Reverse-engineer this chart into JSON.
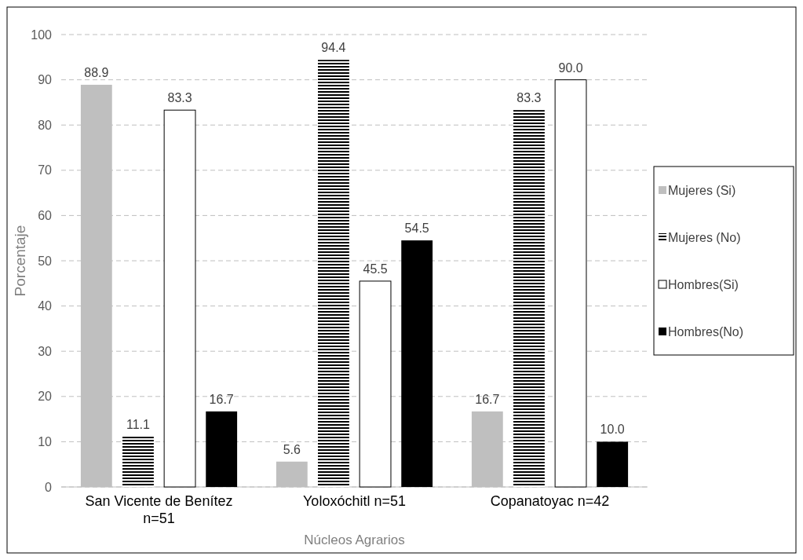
{
  "chart_data": {
    "type": "bar",
    "xlabel": "Núcleos Agrarios",
    "ylabel": "Porcentaje",
    "categories": [
      "San Vicente de Benítez n=51",
      "Yoloxóchitl n=51",
      "Copanatoyac n=42"
    ],
    "series": [
      {
        "name": "Mujeres (Si)",
        "color": "#bfbfbf",
        "values": [
          88.9,
          5.6,
          16.7
        ],
        "value_labels": [
          "88.9",
          "5.6",
          "16.7"
        ]
      },
      {
        "name": "Mujeres (No)",
        "color": "#000000",
        "values": [
          11.1,
          94.4,
          83.3
        ],
        "value_labels": [
          "11.1",
          "94.4",
          "83.3"
        ]
      },
      {
        "name": "Hombres(Si)",
        "color": "#ffffff",
        "values": [
          83.3,
          45.5,
          90.0
        ],
        "value_labels": [
          "83.3",
          "45.5",
          "90.0"
        ]
      },
      {
        "name": "Hombres(No)",
        "color": "#000000",
        "values": [
          16.7,
          54.5,
          10.0
        ],
        "value_labels": [
          "16.7",
          "54.5",
          "10.0"
        ]
      }
    ],
    "ylim": [
      0,
      100
    ],
    "yticks": [
      0,
      10,
      20,
      30,
      40,
      50,
      60,
      70,
      80,
      90,
      100
    ],
    "grid": "y",
    "legend": "right"
  }
}
